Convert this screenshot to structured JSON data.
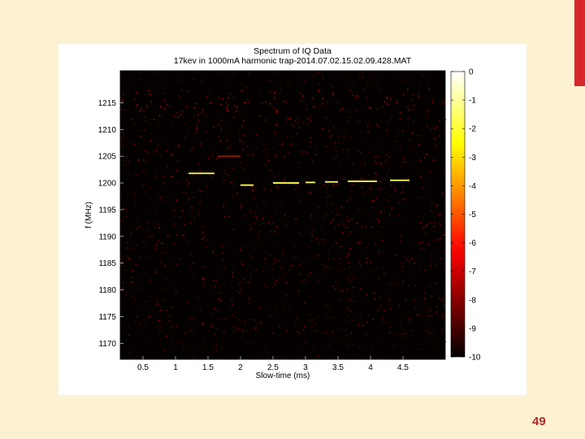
{
  "slide": {
    "page_number": "49",
    "accent_color": "#d9262b",
    "background_color": "#fcf2d2"
  },
  "chart_data": {
    "type": "heatmap",
    "title": "Spectrum of IQ Data",
    "subtitle": "17kev in 1000mA harmonic trap-2014.07.02.15.02.09.428.MAT",
    "xlabel": "Slow-time (ms)",
    "ylabel": "f (MHz)",
    "xlim": [
      0.15,
      5.15
    ],
    "ylim": [
      1167,
      1221
    ],
    "xticks": [
      0.5,
      1,
      1.5,
      2,
      2.5,
      3,
      3.5,
      4,
      4.5
    ],
    "xtick_labels": [
      "0.5",
      "1",
      "1.5",
      "2",
      "2.5",
      "3",
      "3.5",
      "4",
      "4.5"
    ],
    "yticks": [
      1170,
      1175,
      1180,
      1185,
      1190,
      1195,
      1200,
      1205,
      1210,
      1215
    ],
    "ytick_labels": [
      "1170",
      "1175",
      "1180",
      "1185",
      "1190",
      "1195",
      "1200",
      "1205",
      "1210",
      "1215"
    ],
    "colormap": "hot",
    "colorbar": {
      "range": [
        -10,
        0
      ],
      "ticks": [
        0,
        -1,
        -2,
        -3,
        -4,
        -5,
        -6,
        -7,
        -8,
        -9,
        -10
      ],
      "tick_labels": [
        "0",
        "-1",
        "-2",
        "-3",
        "-4",
        "-5",
        "-6",
        "-7",
        "-8",
        "-9",
        "-10"
      ]
    },
    "trace_segments": [
      {
        "x": [
          1.2,
          1.6
        ],
        "f": 1201.8
      },
      {
        "x": [
          2.0,
          2.2
        ],
        "f": 1199.6
      },
      {
        "x": [
          2.5,
          2.9
        ],
        "f": 1200.0
      },
      {
        "x": [
          3.0,
          3.15
        ],
        "f": 1200.1
      },
      {
        "x": [
          3.3,
          3.5
        ],
        "f": 1200.2
      },
      {
        "x": [
          3.65,
          4.1
        ],
        "f": 1200.3
      },
      {
        "x": [
          4.3,
          4.6
        ],
        "f": 1200.5
      }
    ],
    "faint_trace_segments": [
      {
        "x": [
          1.65,
          2.0
        ],
        "f": 1205.0
      }
    ]
  }
}
